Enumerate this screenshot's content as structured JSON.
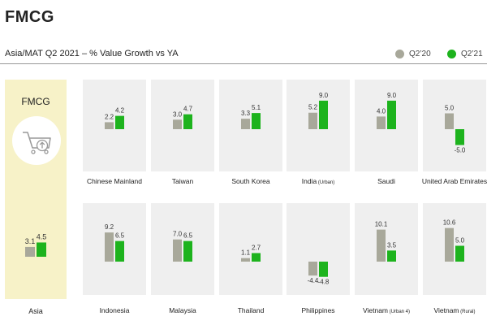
{
  "header": {
    "title": "FMCG",
    "subtitle": "Asia/MAT Q2 2021 – % Value Growth vs YA"
  },
  "legend": [
    {
      "name": "Q2’20",
      "color": "#a8a89a"
    },
    {
      "name": "Q2’21",
      "color": "#1db31d"
    }
  ],
  "asia_panel": {
    "top_label": "FMCG",
    "bottom_label": "Asia",
    "icon": "shopping-cart-up-icon"
  },
  "chart_data": {
    "type": "bar",
    "title": "Asia/MAT Q2 2021 – % Value Growth vs YA",
    "series_names": [
      "Q2’20",
      "Q2’21"
    ],
    "categories": [
      {
        "name": "Asia",
        "sub": "",
        "values": [
          3.1,
          4.5
        ]
      },
      {
        "name": "Chinese Mainland",
        "sub": "",
        "values": [
          2.2,
          4.2
        ]
      },
      {
        "name": "Taiwan",
        "sub": "",
        "values": [
          3.0,
          4.7
        ]
      },
      {
        "name": "South Korea",
        "sub": "",
        "values": [
          3.3,
          5.1
        ]
      },
      {
        "name": "India",
        "sub": "(Urban)",
        "values": [
          5.2,
          9.0
        ]
      },
      {
        "name": "Saudi",
        "sub": "",
        "values": [
          4.0,
          9.0
        ]
      },
      {
        "name": "United Arab Emirates",
        "sub": "",
        "values": [
          5.0,
          -5.0
        ]
      },
      {
        "name": "Indonesia",
        "sub": "",
        "values": [
          9.2,
          6.5
        ]
      },
      {
        "name": "Malaysia",
        "sub": "",
        "values": [
          7.0,
          6.5
        ]
      },
      {
        "name": "Thailand",
        "sub": "",
        "values": [
          1.1,
          2.7
        ]
      },
      {
        "name": "Philippines",
        "sub": "",
        "values": [
          -4.4,
          -4.8
        ]
      },
      {
        "name": "Vietnam",
        "sub": "(Urban 4)",
        "values": [
          10.1,
          3.5
        ]
      },
      {
        "name": "Vietnam",
        "sub": "(Rural)",
        "values": [
          10.6,
          5.0
        ]
      }
    ]
  }
}
